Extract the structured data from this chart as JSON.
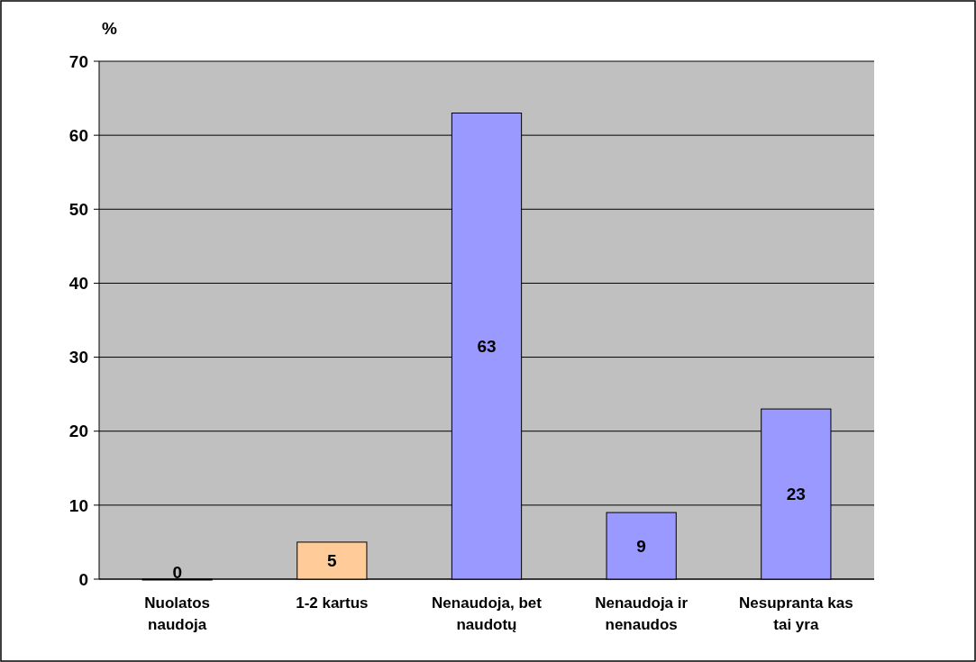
{
  "chart_data": {
    "type": "bar",
    "ylabel": "%",
    "categories": [
      "Nuolatos naudoja",
      "1-2 kartus",
      "Nenaudoja, bet naudotų",
      "Nenaudoja ir nenaudos",
      "Nesupranta kas tai yra"
    ],
    "values": [
      0,
      5,
      63,
      9,
      23
    ],
    "colors": [
      "#9999ff",
      "#ffcc99",
      "#9999ff",
      "#9999ff",
      "#9999ff"
    ],
    "ylim": [
      0,
      70
    ],
    "yticks": [
      0,
      10,
      20,
      30,
      40,
      50,
      60,
      70
    ],
    "grid": "y",
    "data_labels": true
  }
}
